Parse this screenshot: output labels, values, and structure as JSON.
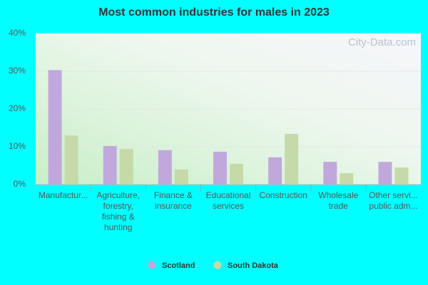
{
  "chart_data": {
    "type": "bar",
    "title": "Most common industries for males in 2023",
    "categories": [
      [
        "Manufactur..."
      ],
      [
        "Agriculture,",
        "forestry,",
        "fishing &",
        "hunting"
      ],
      [
        "Finance &",
        "insurance"
      ],
      [
        "Educational",
        "services"
      ],
      [
        "Construction"
      ],
      [
        "Wholesale",
        "trade"
      ],
      [
        "Other servi...",
        "public adm..."
      ]
    ],
    "series": [
      {
        "name": "Scotland",
        "color": "#c0a8dc",
        "values": [
          30.3,
          10.2,
          9.1,
          8.7,
          7.2,
          6.0,
          6.0
        ]
      },
      {
        "name": "South Dakota",
        "color": "#c6d9a8",
        "values": [
          13.0,
          9.4,
          4.0,
          5.5,
          13.4,
          3.0,
          4.5
        ]
      }
    ],
    "ylim": [
      0,
      40
    ],
    "yticks": [
      {
        "value": 0,
        "label": "0%"
      },
      {
        "value": 10,
        "label": "10%"
      },
      {
        "value": 20,
        "label": "20%"
      },
      {
        "value": 30,
        "label": "30%"
      },
      {
        "value": 40,
        "label": "40%"
      }
    ],
    "grid": true,
    "watermark": "City-Data.com",
    "legend": "bottom"
  }
}
